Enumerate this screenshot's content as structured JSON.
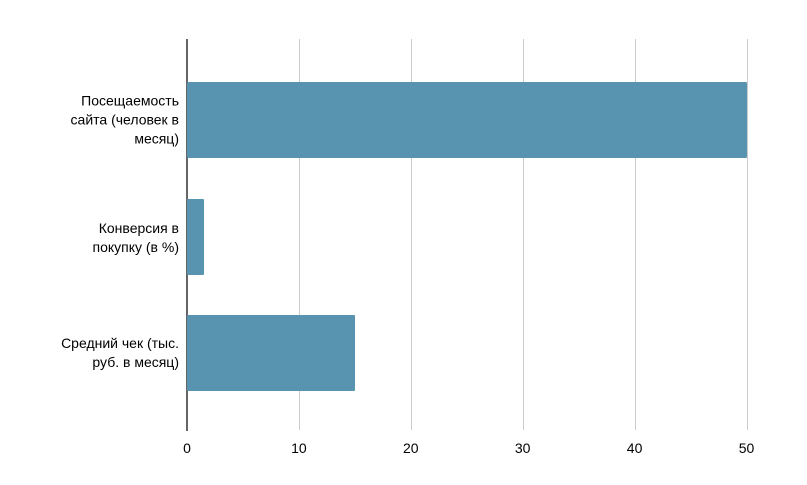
{
  "chart_data": {
    "type": "bar",
    "orientation": "horizontal",
    "title": "",
    "xlabel": "",
    "ylabel": "",
    "legend": "none",
    "grid": true,
    "categories": [
      "Посещаемость сайта (человек в месяц)",
      "Конверсия в покупку (в %)",
      "Средний чек (тыс. руб. в месяц)"
    ],
    "category_label_lines": [
      "Посещаемость\nсайта (человек в\nмесяц)",
      "Конверсия в\nпокупку (в %)",
      "Средний чек (тыс.\nруб. в месяц)"
    ],
    "values": [
      50,
      1.5,
      15
    ],
    "x_ticks": [
      "0",
      "10",
      "20",
      "30",
      "40",
      "50"
    ],
    "x_tick_values": [
      0,
      10,
      20,
      30,
      40,
      50
    ],
    "xlim": [
      0,
      53.6
    ],
    "colors": {
      "bar": "#5893af",
      "gridline": "#cccccc",
      "baseline": "#666666",
      "text": "#000000",
      "background": "#ffffff"
    }
  }
}
